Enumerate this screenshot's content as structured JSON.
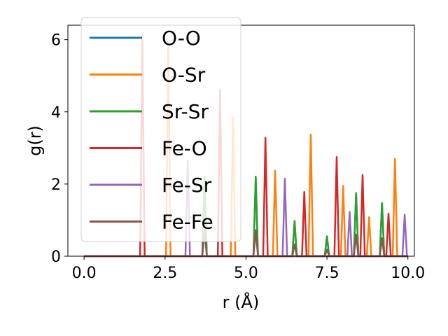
{
  "chart_data": {
    "type": "line",
    "xlabel": "r (Å)",
    "ylabel": "g(r)",
    "xlim": [
      -0.5,
      10.2
    ],
    "ylim": [
      0,
      6.4
    ],
    "xticks": [
      0.0,
      2.5,
      5.0,
      7.5,
      10.0
    ],
    "xtick_labels": [
      "0.0",
      "2.5",
      "5.0",
      "7.5",
      "10.0"
    ],
    "yticks": [
      0,
      2,
      4,
      6
    ],
    "ytick_labels": [
      "0",
      "2",
      "4",
      "6"
    ],
    "legend_position": "top-left",
    "grid": false,
    "series": [
      {
        "name": "O-O",
        "color": "#1f77b4",
        "peaks": [
          [
            3.72,
            2.2
          ],
          [
            5.3,
            2.2
          ],
          [
            6.5,
            0.98
          ],
          [
            7.5,
            0.55
          ],
          [
            8.4,
            1.75
          ],
          [
            9.2,
            1.47
          ]
        ]
      },
      {
        "name": "O-Sr",
        "color": "#ff7f0e",
        "peaks": [
          [
            2.6,
            5.95
          ],
          [
            4.6,
            3.85
          ],
          [
            5.9,
            2.37
          ],
          [
            7.0,
            3.37
          ],
          [
            8.0,
            1.95
          ],
          [
            8.8,
            1.08
          ],
          [
            9.6,
            2.7
          ]
        ]
      },
      {
        "name": "Sr-Sr",
        "color": "#2ca02c",
        "peaks": [
          [
            3.72,
            2.2
          ],
          [
            5.3,
            2.2
          ],
          [
            6.5,
            0.98
          ],
          [
            7.5,
            0.55
          ],
          [
            8.4,
            1.75
          ],
          [
            9.2,
            1.47
          ]
        ]
      },
      {
        "name": "Fe-O",
        "color": "#d62728",
        "peaks": [
          [
            1.8,
            6.0
          ],
          [
            4.2,
            4.62
          ],
          [
            5.6,
            3.28
          ],
          [
            6.8,
            1.78
          ],
          [
            7.8,
            2.75
          ],
          [
            8.6,
            2.25
          ],
          [
            9.4,
            1.18
          ]
        ]
      },
      {
        "name": "Fe-Sr",
        "color": "#9467bd",
        "peaks": [
          [
            3.2,
            2.65
          ],
          [
            6.2,
            2.15
          ],
          [
            8.2,
            1.23
          ],
          [
            9.9,
            1.15
          ]
        ]
      },
      {
        "name": "Fe-Fe",
        "color": "#8c564b",
        "peaks": [
          [
            3.72,
            0.72
          ],
          [
            5.3,
            0.72
          ],
          [
            6.5,
            0.33
          ],
          [
            7.5,
            0.18
          ],
          [
            8.4,
            0.6
          ],
          [
            9.2,
            0.5
          ]
        ]
      }
    ]
  }
}
